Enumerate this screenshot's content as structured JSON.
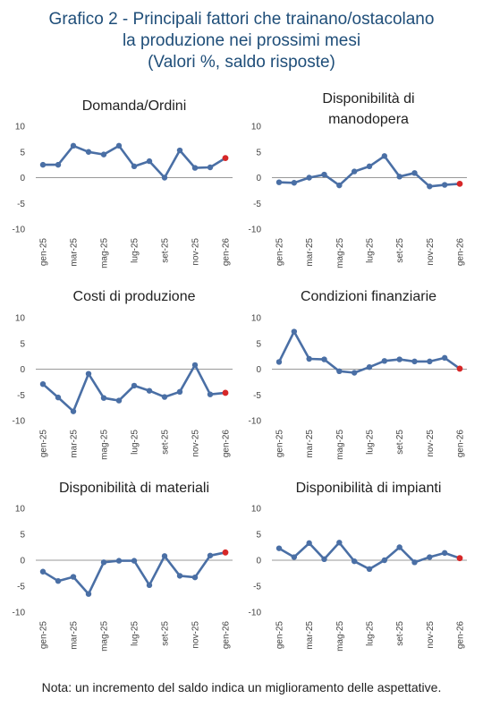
{
  "title": {
    "line1": "Grafico 2 - Principali fattori che trainano/ostacolano",
    "line2": "la produzione nei prossimi mesi",
    "line3": "(Valori %, saldo risposte)"
  },
  "note": "Nota: un incremento del saldo indica un miglioramento delle aspettative.",
  "colors": {
    "line": "#4a6fa5",
    "last_point": "#d62728",
    "axis": "#999999",
    "title": "#1f4e79"
  },
  "chart_data": [
    {
      "type": "line",
      "title_lines": [
        "Domanda/Ordini"
      ],
      "x": [
        "gen-25",
        "feb-25",
        "mar-25",
        "apr-25",
        "mag-25",
        "giu-25",
        "lug-25",
        "ago-25",
        "set-25",
        "ott-25",
        "nov-25",
        "dic-25",
        "gen-26"
      ],
      "x_tick_labels": [
        "gen-25",
        "",
        "mar-25",
        "",
        "mag-25",
        "",
        "lug-25",
        "",
        "set-25",
        "",
        "nov-25",
        "",
        "gen-26"
      ],
      "values": [
        2.5,
        2.5,
        6.2,
        5.0,
        4.5,
        6.2,
        2.2,
        3.2,
        0.0,
        5.3,
        1.9,
        2.0,
        3.8
      ],
      "ylim": [
        -10,
        10
      ],
      "yticks": [
        10,
        5,
        0,
        -5,
        -10
      ],
      "grid": false
    },
    {
      "type": "line",
      "title_lines": [
        "Disponibilità di",
        "manodopera"
      ],
      "x": [
        "gen-25",
        "feb-25",
        "mar-25",
        "apr-25",
        "mag-25",
        "giu-25",
        "lug-25",
        "ago-25",
        "set-25",
        "ott-25",
        "nov-25",
        "dic-25",
        "gen-26"
      ],
      "x_tick_labels": [
        "gen-25",
        "",
        "mar-25",
        "",
        "mag-25",
        "",
        "lug-25",
        "",
        "set-25",
        "",
        "nov-25",
        "",
        "gen-26"
      ],
      "values": [
        -0.9,
        -1.0,
        0.0,
        0.6,
        -1.5,
        1.2,
        2.2,
        4.2,
        0.2,
        0.9,
        -1.7,
        -1.4,
        -1.2
      ],
      "ylim": [
        -10,
        10
      ],
      "yticks": [
        10,
        5,
        0,
        -5,
        -10
      ],
      "grid": false
    },
    {
      "type": "line",
      "title_lines": [
        "Costi di produzione"
      ],
      "x": [
        "gen-25",
        "feb-25",
        "mar-25",
        "apr-25",
        "mag-25",
        "giu-25",
        "lug-25",
        "ago-25",
        "set-25",
        "ott-25",
        "nov-25",
        "dic-25",
        "gen-26"
      ],
      "x_tick_labels": [
        "gen-25",
        "",
        "mar-25",
        "",
        "mag-25",
        "",
        "lug-25",
        "",
        "set-25",
        "",
        "nov-25",
        "",
        "gen-26"
      ],
      "values": [
        -2.9,
        -5.5,
        -8.2,
        -0.9,
        -5.6,
        -6.1,
        -3.2,
        -4.2,
        -5.4,
        -4.4,
        0.8,
        -4.9,
        -4.6
      ],
      "ylim": [
        -10,
        10
      ],
      "yticks": [
        10,
        5,
        0,
        -5,
        -10
      ],
      "grid": false
    },
    {
      "type": "line",
      "title_lines": [
        "Condizioni finanziarie"
      ],
      "x": [
        "gen-25",
        "feb-25",
        "mar-25",
        "apr-25",
        "mag-25",
        "giu-25",
        "lug-25",
        "ago-25",
        "set-25",
        "ott-25",
        "nov-25",
        "dic-25",
        "gen-26"
      ],
      "x_tick_labels": [
        "gen-25",
        "",
        "mar-25",
        "",
        "mag-25",
        "",
        "lug-25",
        "",
        "set-25",
        "",
        "nov-25",
        "",
        "gen-26"
      ],
      "values": [
        1.4,
        7.3,
        2.0,
        1.9,
        -0.4,
        -0.7,
        0.4,
        1.6,
        1.9,
        1.5,
        1.5,
        2.2,
        0.1
      ],
      "ylim": [
        -10,
        10
      ],
      "yticks": [
        10,
        5,
        0,
        -5,
        -10
      ],
      "grid": false
    },
    {
      "type": "line",
      "title_lines": [
        "Disponibilità di materiali"
      ],
      "x": [
        "gen-25",
        "feb-25",
        "mar-25",
        "apr-25",
        "mag-25",
        "giu-25",
        "lug-25",
        "ago-25",
        "set-25",
        "ott-25",
        "nov-25",
        "dic-25",
        "gen-26"
      ],
      "x_tick_labels": [
        "gen-25",
        "",
        "mar-25",
        "",
        "mag-25",
        "",
        "lug-25",
        "",
        "set-25",
        "",
        "nov-25",
        "",
        "gen-26"
      ],
      "values": [
        -2.2,
        -4.0,
        -3.2,
        -6.5,
        -0.4,
        -0.1,
        -0.1,
        -4.8,
        0.8,
        -3.0,
        -3.3,
        0.9,
        1.5
      ],
      "ylim": [
        -10,
        10
      ],
      "yticks": [
        10,
        5,
        0,
        -5,
        -10
      ],
      "grid": false
    },
    {
      "type": "line",
      "title_lines": [
        "Disponibilità di impianti"
      ],
      "x": [
        "gen-25",
        "feb-25",
        "mar-25",
        "apr-25",
        "mag-25",
        "giu-25",
        "lug-25",
        "ago-25",
        "set-25",
        "ott-25",
        "nov-25",
        "dic-25",
        "gen-26"
      ],
      "x_tick_labels": [
        "gen-25",
        "",
        "mar-25",
        "",
        "mag-25",
        "",
        "lug-25",
        "",
        "set-25",
        "",
        "nov-25",
        "",
        "gen-26"
      ],
      "values": [
        2.3,
        0.6,
        3.3,
        0.2,
        3.4,
        -0.2,
        -1.7,
        0.0,
        2.5,
        -0.4,
        0.6,
        1.4,
        0.4
      ],
      "ylim": [
        -10,
        10
      ],
      "yticks": [
        10,
        5,
        0,
        -5,
        -10
      ],
      "grid": false
    }
  ]
}
